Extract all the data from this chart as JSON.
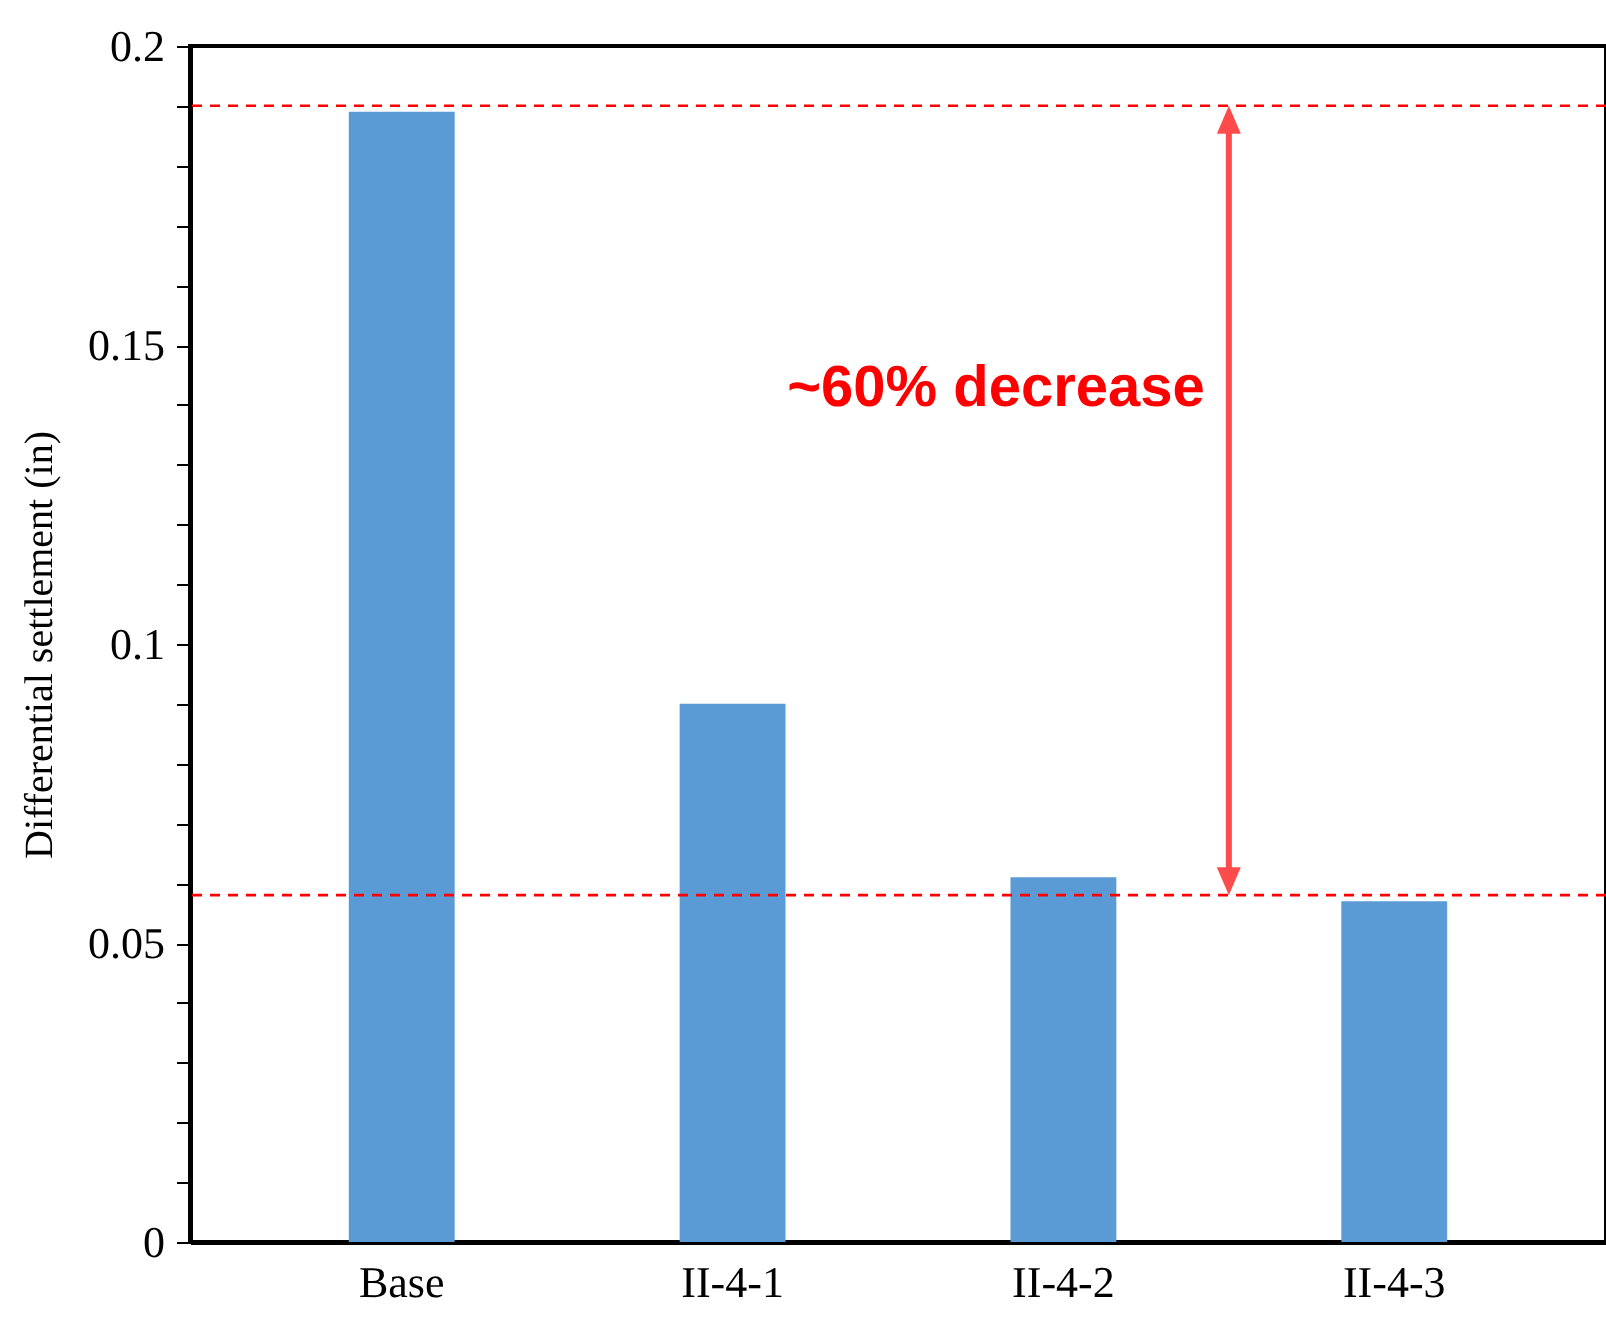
{
  "chart_data": {
    "type": "bar",
    "ylabel": "Differential settlement (in)",
    "categories": [
      "Base",
      "II-4-1",
      "II-4-2",
      "II-4-3"
    ],
    "values": [
      0.189,
      0.09,
      0.061,
      0.057
    ],
    "color": "#5b9bd5",
    "ylim": [
      0,
      0.2
    ],
    "yticks": [
      0,
      {
        "value": 0.01,
        "label": null
      },
      {
        "value": 0.02,
        "label": null
      },
      {
        "value": 0.03,
        "label": null
      },
      {
        "value": 0.04,
        "label": null
      },
      0.05,
      {
        "value": 0.06,
        "label": null
      },
      {
        "value": 0.07,
        "label": null
      },
      {
        "value": 0.08,
        "label": null
      },
      {
        "value": 0.09,
        "label": null
      },
      0.1,
      {
        "value": 0.11,
        "label": null
      },
      {
        "value": 0.12,
        "label": null
      },
      {
        "value": 0.13,
        "label": null
      },
      {
        "value": 0.14,
        "label": null
      },
      0.15,
      {
        "value": 0.16,
        "label": null
      },
      {
        "value": 0.17,
        "label": null
      },
      {
        "value": 0.18,
        "label": null
      },
      {
        "value": 0.19,
        "label": null
      },
      0.2
    ],
    "ref_lines": [
      {
        "axis": "y",
        "value": 0.19,
        "color": "#ff0000",
        "line_style": "dashed"
      },
      {
        "axis": "y",
        "value": 0.058,
        "color": "#ff0000",
        "line_style": "dashed"
      }
    ],
    "annotations": [
      "~60% decrease"
    ],
    "grid": false
  }
}
